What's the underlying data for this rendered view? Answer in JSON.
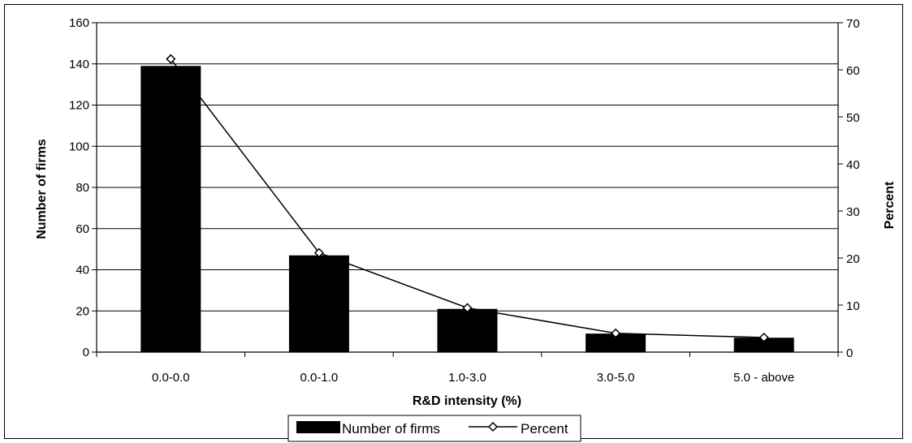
{
  "chart_data": {
    "type": "bar",
    "categories": [
      "0.0-0.0",
      "0.0-1.0",
      "1.0-3.0",
      "3.0-5.0",
      "5.0 - above"
    ],
    "series": [
      {
        "name": "Number of firms",
        "type": "bar",
        "axis": "left",
        "values": [
          139,
          47,
          21,
          9,
          7
        ]
      },
      {
        "name": "Percent",
        "type": "line",
        "axis": "right",
        "marker": "diamond",
        "values": [
          62.3,
          21.1,
          9.4,
          4.0,
          3.1
        ]
      }
    ],
    "xlabel": "R&D intensity (%)",
    "ylabel": "Number of firms",
    "ylabel_right": "Percent",
    "ylim": [
      0,
      160
    ],
    "ylim_right": [
      0,
      70
    ],
    "yticks": [
      0,
      20,
      40,
      60,
      80,
      100,
      120,
      140,
      160
    ],
    "yticks_right": [
      0,
      10,
      20,
      30,
      40,
      50,
      60,
      70
    ],
    "grid": true,
    "legend_position": "bottom-center",
    "colors": {
      "bar": "#000000",
      "line": "#000000",
      "grid": "#000000",
      "marker_fill": "#ffffff"
    }
  }
}
